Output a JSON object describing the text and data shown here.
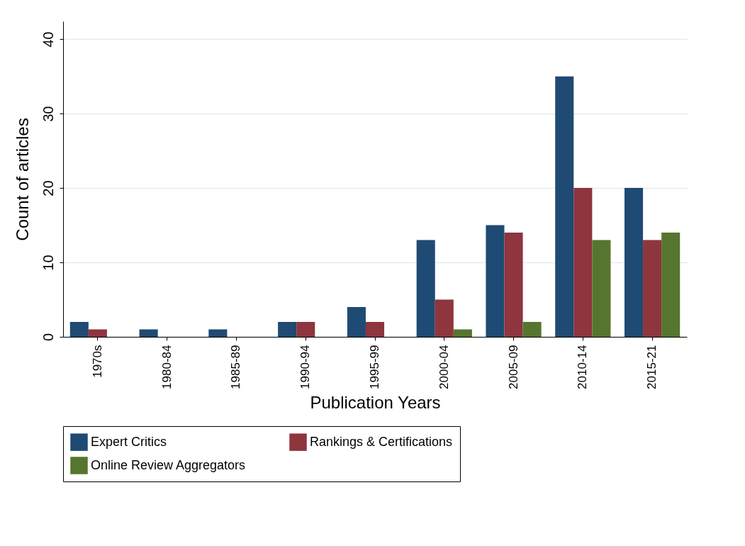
{
  "chart_data": {
    "type": "bar",
    "xlabel": "Publication Years",
    "ylabel": "Count of articles",
    "categories": [
      "1970s",
      "1980-84",
      "1985-89",
      "1990-94",
      "1995-99",
      "2000-04",
      "2005-09",
      "2010-14",
      "2015-21"
    ],
    "series": [
      {
        "name": "Expert Critics",
        "color": "#1f4a73",
        "values": [
          2,
          1,
          1,
          2,
          4,
          13,
          15,
          35,
          20
        ]
      },
      {
        "name": "Rankings & Certifications",
        "color": "#8e353e",
        "values": [
          1,
          0,
          0,
          2,
          2,
          5,
          14,
          20,
          13
        ]
      },
      {
        "name": "Online Review Aggregators",
        "color": "#56752f",
        "values": [
          0,
          0,
          0,
          0,
          0,
          1,
          2,
          13,
          14
        ]
      }
    ],
    "ylim": [
      0,
      42.4
    ],
    "yticks": [
      0,
      10,
      20,
      30,
      40
    ],
    "grid": "y",
    "legend": "bottom"
  }
}
